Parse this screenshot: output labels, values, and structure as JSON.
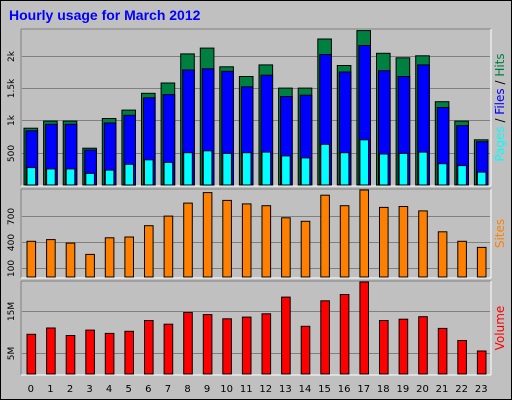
{
  "title": "Hourly usage for March 2012",
  "colors": {
    "background": "#c0c0c0",
    "hits": "#008040",
    "files": "#0000ff",
    "pages": "#00ffff",
    "sites": "#ff8000",
    "volume": "#ff0000",
    "title": "#0000ff",
    "grid": "#808080"
  },
  "chart_data": [
    {
      "type": "bar",
      "title": "Hourly usage for March 2012",
      "categories": [
        "0",
        "1",
        "2",
        "3",
        "4",
        "5",
        "6",
        "7",
        "8",
        "9",
        "10",
        "11",
        "12",
        "13",
        "14",
        "15",
        "16",
        "17",
        "18",
        "19",
        "20",
        "21",
        "22",
        "23"
      ],
      "ylim": [
        0,
        2400
      ],
      "yticks": [
        "500",
        "1k",
        "1.5k",
        "2k"
      ],
      "ytick_values": [
        500,
        1000,
        1500,
        2000
      ],
      "series": [
        {
          "name": "Hits",
          "values": [
            880,
            990,
            990,
            570,
            1030,
            1160,
            1420,
            1580,
            2030,
            2120,
            1830,
            1680,
            1860,
            1500,
            1500,
            2260,
            1850,
            2390,
            2040,
            1970,
            2000,
            1290,
            990,
            700
          ]
        },
        {
          "name": "Files",
          "values": [
            840,
            940,
            940,
            540,
            960,
            1080,
            1350,
            1400,
            1780,
            1800,
            1760,
            1520,
            1700,
            1370,
            1390,
            2020,
            1750,
            2160,
            1770,
            1680,
            1860,
            1200,
            920,
            670
          ]
        },
        {
          "name": "Pages",
          "values": [
            270,
            250,
            250,
            180,
            230,
            320,
            390,
            350,
            500,
            530,
            490,
            500,
            510,
            450,
            420,
            630,
            500,
            700,
            480,
            490,
            510,
            330,
            300,
            200
          ]
        }
      ],
      "side_label": [
        "Pages",
        " / ",
        "Files",
        " / ",
        "Hits"
      ]
    },
    {
      "type": "bar",
      "categories": [
        "0",
        "1",
        "2",
        "3",
        "4",
        "5",
        "6",
        "7",
        "8",
        "9",
        "10",
        "11",
        "12",
        "13",
        "14",
        "15",
        "16",
        "17",
        "18",
        "19",
        "20",
        "21",
        "22",
        "23"
      ],
      "ylim": [
        0,
        1000
      ],
      "yticks": [
        "100",
        "400",
        "700"
      ],
      "ytick_values": [
        100,
        400,
        700
      ],
      "series": [
        {
          "name": "Sites",
          "values": [
            410,
            430,
            390,
            260,
            450,
            460,
            590,
            700,
            850,
            970,
            880,
            840,
            820,
            680,
            640,
            940,
            820,
            1000,
            800,
            810,
            760,
            520,
            410,
            340
          ]
        }
      ],
      "side_label": [
        "Sites"
      ]
    },
    {
      "type": "bar",
      "categories": [
        "0",
        "1",
        "2",
        "3",
        "4",
        "5",
        "6",
        "7",
        "8",
        "9",
        "10",
        "11",
        "12",
        "13",
        "14",
        "15",
        "16",
        "17",
        "18",
        "19",
        "20",
        "21",
        "22",
        "23"
      ],
      "ylim": [
        0,
        22
      ],
      "yticks": [
        "5M",
        "15M"
      ],
      "ytick_values": [
        5,
        15
      ],
      "series": [
        {
          "name": "Volume",
          "values": [
            9.5,
            11.0,
            9.2,
            10.5,
            9.7,
            10.2,
            12.8,
            11.9,
            14.7,
            14.2,
            13.2,
            13.6,
            14.4,
            18.4,
            11.4,
            17.5,
            19.0,
            22.0,
            12.8,
            13.1,
            13.7,
            10.9,
            8.0,
            5.5
          ]
        }
      ],
      "side_label": [
        "Volume"
      ]
    }
  ]
}
